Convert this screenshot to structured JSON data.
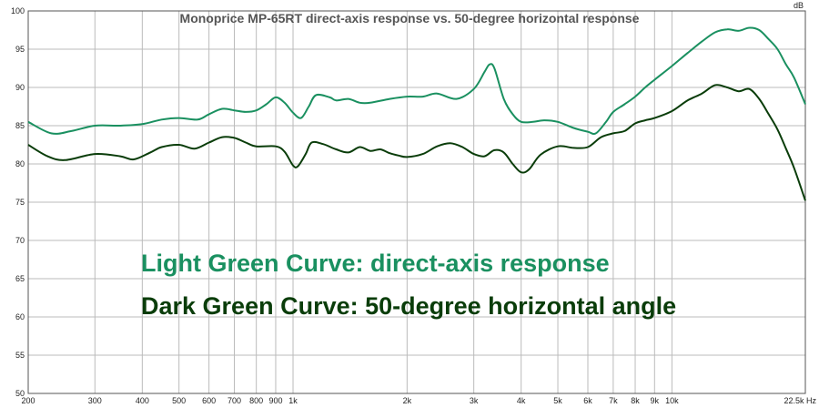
{
  "chart_data": {
    "type": "line",
    "title": "Monoprice MP-65RT direct-axis response vs. 50-degree horizontal response",
    "xlabel": "",
    "ylabel": "dB",
    "x_scale": "log",
    "xlim": [
      200,
      22500
    ],
    "ylim": [
      50,
      100
    ],
    "grid": true,
    "x_ticks": [
      {
        "value": 200,
        "label": "200"
      },
      {
        "value": 300,
        "label": "300"
      },
      {
        "value": 400,
        "label": "400"
      },
      {
        "value": 500,
        "label": "500"
      },
      {
        "value": 600,
        "label": "600"
      },
      {
        "value": 700,
        "label": "700"
      },
      {
        "value": 800,
        "label": "800"
      },
      {
        "value": 900,
        "label": "900"
      },
      {
        "value": 1000,
        "label": "1k"
      },
      {
        "value": 2000,
        "label": "2k"
      },
      {
        "value": 3000,
        "label": "3k"
      },
      {
        "value": 4000,
        "label": "4k"
      },
      {
        "value": 5000,
        "label": "5k"
      },
      {
        "value": 6000,
        "label": "6k"
      },
      {
        "value": 7000,
        "label": "7k"
      },
      {
        "value": 8000,
        "label": "8k"
      },
      {
        "value": 9000,
        "label": "9k"
      },
      {
        "value": 10000,
        "label": "10k"
      },
      {
        "value": 22500,
        "label": "22.5k Hz"
      }
    ],
    "y_ticks": [
      50,
      55,
      60,
      65,
      70,
      75,
      80,
      85,
      90,
      95,
      100
    ],
    "series": [
      {
        "color": "#1a9060",
        "points": [
          [
            200,
            85.5
          ],
          [
            230,
            84.0
          ],
          [
            260,
            84.3
          ],
          [
            300,
            85.0
          ],
          [
            350,
            85.0
          ],
          [
            400,
            85.2
          ],
          [
            450,
            85.8
          ],
          [
            500,
            86.0
          ],
          [
            560,
            85.8
          ],
          [
            600,
            86.5
          ],
          [
            650,
            87.2
          ],
          [
            700,
            87.0
          ],
          [
            750,
            86.8
          ],
          [
            800,
            87.0
          ],
          [
            850,
            87.8
          ],
          [
            900,
            88.7
          ],
          [
            950,
            88.0
          ],
          [
            1000,
            86.7
          ],
          [
            1050,
            86.0
          ],
          [
            1100,
            87.5
          ],
          [
            1150,
            89.0
          ],
          [
            1250,
            88.7
          ],
          [
            1300,
            88.3
          ],
          [
            1400,
            88.5
          ],
          [
            1500,
            88.0
          ],
          [
            1600,
            88.0
          ],
          [
            1800,
            88.5
          ],
          [
            2000,
            88.8
          ],
          [
            2200,
            88.8
          ],
          [
            2400,
            89.2
          ],
          [
            2700,
            88.5
          ],
          [
            3000,
            89.8
          ],
          [
            3200,
            92.0
          ],
          [
            3300,
            93.0
          ],
          [
            3400,
            92.5
          ],
          [
            3600,
            88.5
          ],
          [
            3800,
            86.5
          ],
          [
            4000,
            85.5
          ],
          [
            4300,
            85.5
          ],
          [
            4600,
            85.7
          ],
          [
            5000,
            85.5
          ],
          [
            5500,
            84.7
          ],
          [
            6000,
            84.2
          ],
          [
            6300,
            84.0
          ],
          [
            6700,
            85.5
          ],
          [
            7000,
            86.8
          ],
          [
            7500,
            87.8
          ],
          [
            8000,
            88.8
          ],
          [
            8500,
            90.0
          ],
          [
            9000,
            91.0
          ],
          [
            10000,
            92.8
          ],
          [
            11000,
            94.5
          ],
          [
            12000,
            96.0
          ],
          [
            13000,
            97.2
          ],
          [
            14000,
            97.6
          ],
          [
            15000,
            97.4
          ],
          [
            16000,
            97.8
          ],
          [
            17000,
            97.5
          ],
          [
            18000,
            96.3
          ],
          [
            19000,
            95.0
          ],
          [
            20000,
            93.0
          ],
          [
            21000,
            91.3
          ],
          [
            22500,
            87.8
          ]
        ]
      },
      {
        "color": "#0a3d0a",
        "points": [
          [
            200,
            82.5
          ],
          [
            225,
            81.0
          ],
          [
            250,
            80.5
          ],
          [
            300,
            81.3
          ],
          [
            350,
            81.0
          ],
          [
            380,
            80.6
          ],
          [
            420,
            81.5
          ],
          [
            450,
            82.2
          ],
          [
            500,
            82.5
          ],
          [
            550,
            82.0
          ],
          [
            600,
            82.8
          ],
          [
            650,
            83.5
          ],
          [
            700,
            83.4
          ],
          [
            750,
            82.8
          ],
          [
            800,
            82.3
          ],
          [
            900,
            82.3
          ],
          [
            950,
            81.6
          ],
          [
            1000,
            79.8
          ],
          [
            1030,
            79.7
          ],
          [
            1080,
            81.3
          ],
          [
            1120,
            82.8
          ],
          [
            1200,
            82.6
          ],
          [
            1300,
            81.9
          ],
          [
            1400,
            81.5
          ],
          [
            1500,
            82.2
          ],
          [
            1600,
            81.7
          ],
          [
            1700,
            81.9
          ],
          [
            1800,
            81.4
          ],
          [
            1900,
            81.1
          ],
          [
            2000,
            80.9
          ],
          [
            2200,
            81.3
          ],
          [
            2400,
            82.3
          ],
          [
            2600,
            82.7
          ],
          [
            2800,
            82.2
          ],
          [
            3000,
            81.3
          ],
          [
            3200,
            81.0
          ],
          [
            3400,
            81.8
          ],
          [
            3600,
            81.5
          ],
          [
            3800,
            80.0
          ],
          [
            4000,
            78.9
          ],
          [
            4200,
            79.3
          ],
          [
            4500,
            81.2
          ],
          [
            5000,
            82.3
          ],
          [
            5500,
            82.1
          ],
          [
            6000,
            82.2
          ],
          [
            6500,
            83.5
          ],
          [
            7000,
            84.0
          ],
          [
            7500,
            84.3
          ],
          [
            8000,
            85.3
          ],
          [
            8500,
            85.7
          ],
          [
            9000,
            86.0
          ],
          [
            10000,
            86.9
          ],
          [
            11000,
            88.3
          ],
          [
            12000,
            89.2
          ],
          [
            13000,
            90.3
          ],
          [
            14000,
            90.0
          ],
          [
            15000,
            89.5
          ],
          [
            16000,
            89.8
          ],
          [
            17000,
            88.5
          ],
          [
            18000,
            86.5
          ],
          [
            19000,
            84.5
          ],
          [
            20000,
            82.0
          ],
          [
            21000,
            79.5
          ],
          [
            22500,
            75.2
          ]
        ]
      }
    ],
    "annotations": [
      {
        "text": "Light Green Curve: direct-axis response",
        "color": "#1a9060"
      },
      {
        "text": "Dark Green Curve: 50-degree horizontal angle",
        "color": "#0a3d0a"
      }
    ]
  }
}
